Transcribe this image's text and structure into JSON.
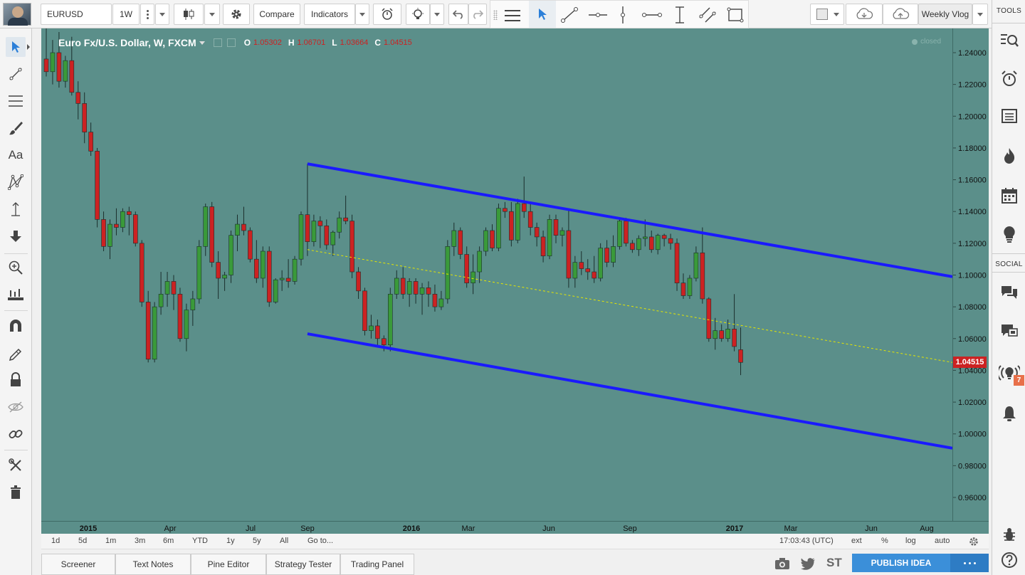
{
  "toolbar": {
    "symbol": "EURUSD",
    "interval": "1W",
    "compare_label": "Compare",
    "indicators_label": "Indicators",
    "layout_name": "Weekly Vlog"
  },
  "legend": {
    "title": "Euro Fx/U.S. Dollar, W, FXCM",
    "o_label": "O",
    "o_value": "1.05302",
    "h_label": "H",
    "h_value": "1.06701",
    "l_label": "L",
    "l_value": "1.03664",
    "c_label": "C",
    "c_value": "1.04515",
    "status": "closed"
  },
  "right_panel": {
    "tools_label": "TOOLS",
    "social_label": "SOCIAL",
    "badge_count": "7"
  },
  "colors": {
    "background": "#5b8f8a",
    "up_candle": "#3a9a3a",
    "down_candle": "#cc2222",
    "channel": "#1a1aff",
    "midline": "#e6e600",
    "last_price": "#cc2222"
  },
  "chart_data": {
    "type": "candlestick",
    "symbol": "EURUSD",
    "timeframe": "W",
    "ylim": [
      0.95,
      1.255
    ],
    "y_ticks": [
      "1.24000",
      "1.22000",
      "1.20000",
      "1.18000",
      "1.16000",
      "1.14000",
      "1.12000",
      "1.10000",
      "1.08000",
      "1.06000",
      "1.04000",
      "1.02000",
      "1.00000",
      "0.98000",
      "0.96000"
    ],
    "x_ticks": [
      "2015",
      "Apr",
      "Jul",
      "Sep",
      "2016",
      "Mar",
      "Jun",
      "Sep",
      "2017",
      "Mar",
      "Jun",
      "Aug"
    ],
    "last_price_label": "1.04515",
    "candles": [
      {
        "o": 1.236,
        "h": 1.258,
        "l": 1.225,
        "c": 1.228
      },
      {
        "o": 1.228,
        "h": 1.248,
        "l": 1.22,
        "c": 1.24
      },
      {
        "o": 1.24,
        "h": 1.253,
        "l": 1.218,
        "c": 1.222
      },
      {
        "o": 1.222,
        "h": 1.238,
        "l": 1.218,
        "c": 1.235
      },
      {
        "o": 1.235,
        "h": 1.25,
        "l": 1.213,
        "c": 1.215
      },
      {
        "o": 1.215,
        "h": 1.222,
        "l": 1.198,
        "c": 1.208
      },
      {
        "o": 1.208,
        "h": 1.215,
        "l": 1.183,
        "c": 1.19
      },
      {
        "o": 1.19,
        "h": 1.196,
        "l": 1.175,
        "c": 1.178
      },
      {
        "o": 1.178,
        "h": 1.18,
        "l": 1.13,
        "c": 1.135
      },
      {
        "o": 1.135,
        "h": 1.14,
        "l": 1.115,
        "c": 1.118
      },
      {
        "o": 1.118,
        "h": 1.135,
        "l": 1.11,
        "c": 1.132
      },
      {
        "o": 1.132,
        "h": 1.142,
        "l": 1.125,
        "c": 1.13
      },
      {
        "o": 1.13,
        "h": 1.142,
        "l": 1.127,
        "c": 1.14
      },
      {
        "o": 1.14,
        "h": 1.143,
        "l": 1.125,
        "c": 1.138
      },
      {
        "o": 1.138,
        "h": 1.14,
        "l": 1.118,
        "c": 1.12
      },
      {
        "o": 1.12,
        "h": 1.122,
        "l": 1.08,
        "c": 1.083
      },
      {
        "o": 1.083,
        "h": 1.09,
        "l": 1.045,
        "c": 1.047
      },
      {
        "o": 1.047,
        "h": 1.083,
        "l": 1.045,
        "c": 1.08
      },
      {
        "o": 1.08,
        "h": 1.102,
        "l": 1.075,
        "c": 1.088
      },
      {
        "o": 1.088,
        "h": 1.102,
        "l": 1.08,
        "c": 1.096
      },
      {
        "o": 1.096,
        "h": 1.1,
        "l": 1.078,
        "c": 1.088
      },
      {
        "o": 1.088,
        "h": 1.092,
        "l": 1.058,
        "c": 1.06
      },
      {
        "o": 1.06,
        "h": 1.082,
        "l": 1.052,
        "c": 1.078
      },
      {
        "o": 1.078,
        "h": 1.09,
        "l": 1.068,
        "c": 1.085
      },
      {
        "o": 1.085,
        "h": 1.122,
        "l": 1.082,
        "c": 1.118
      },
      {
        "o": 1.118,
        "h": 1.145,
        "l": 1.112,
        "c": 1.143
      },
      {
        "o": 1.143,
        "h": 1.146,
        "l": 1.105,
        "c": 1.108
      },
      {
        "o": 1.108,
        "h": 1.115,
        "l": 1.085,
        "c": 1.098
      },
      {
        "o": 1.098,
        "h": 1.102,
        "l": 1.09,
        "c": 1.1
      },
      {
        "o": 1.1,
        "h": 1.128,
        "l": 1.095,
        "c": 1.125
      },
      {
        "o": 1.125,
        "h": 1.138,
        "l": 1.115,
        "c": 1.132
      },
      {
        "o": 1.132,
        "h": 1.143,
        "l": 1.125,
        "c": 1.128
      },
      {
        "o": 1.128,
        "h": 1.13,
        "l": 1.108,
        "c": 1.11
      },
      {
        "o": 1.11,
        "h": 1.122,
        "l": 1.095,
        "c": 1.098
      },
      {
        "o": 1.098,
        "h": 1.118,
        "l": 1.092,
        "c": 1.115
      },
      {
        "o": 1.115,
        "h": 1.118,
        "l": 1.08,
        "c": 1.083
      },
      {
        "o": 1.083,
        "h": 1.098,
        "l": 1.082,
        "c": 1.097
      },
      {
        "o": 1.097,
        "h": 1.103,
        "l": 1.09,
        "c": 1.098
      },
      {
        "o": 1.098,
        "h": 1.11,
        "l": 1.092,
        "c": 1.096
      },
      {
        "o": 1.096,
        "h": 1.112,
        "l": 1.094,
        "c": 1.11
      },
      {
        "o": 1.11,
        "h": 1.14,
        "l": 1.106,
        "c": 1.138
      },
      {
        "o": 1.138,
        "h": 1.17,
        "l": 1.112,
        "c": 1.121
      },
      {
        "o": 1.121,
        "h": 1.138,
        "l": 1.118,
        "c": 1.134
      },
      {
        "o": 1.134,
        "h": 1.137,
        "l": 1.117,
        "c": 1.131
      },
      {
        "o": 1.131,
        "h": 1.135,
        "l": 1.116,
        "c": 1.119
      },
      {
        "o": 1.119,
        "h": 1.128,
        "l": 1.112,
        "c": 1.127
      },
      {
        "o": 1.127,
        "h": 1.14,
        "l": 1.123,
        "c": 1.136
      },
      {
        "o": 1.136,
        "h": 1.15,
        "l": 1.132,
        "c": 1.134
      },
      {
        "o": 1.134,
        "h": 1.138,
        "l": 1.098,
        "c": 1.102
      },
      {
        "o": 1.102,
        "h": 1.105,
        "l": 1.085,
        "c": 1.09
      },
      {
        "o": 1.09,
        "h": 1.092,
        "l": 1.062,
        "c": 1.065
      },
      {
        "o": 1.065,
        "h": 1.075,
        "l": 1.06,
        "c": 1.068
      },
      {
        "o": 1.068,
        "h": 1.072,
        "l": 1.055,
        "c": 1.06
      },
      {
        "o": 1.06,
        "h": 1.062,
        "l": 1.052,
        "c": 1.056
      },
      {
        "o": 1.056,
        "h": 1.092,
        "l": 1.052,
        "c": 1.088
      },
      {
        "o": 1.088,
        "h": 1.103,
        "l": 1.085,
        "c": 1.098
      },
      {
        "o": 1.098,
        "h": 1.105,
        "l": 1.085,
        "c": 1.088
      },
      {
        "o": 1.088,
        "h": 1.098,
        "l": 1.08,
        "c": 1.096
      },
      {
        "o": 1.096,
        "h": 1.098,
        "l": 1.082,
        "c": 1.088
      },
      {
        "o": 1.088,
        "h": 1.095,
        "l": 1.075,
        "c": 1.092
      },
      {
        "o": 1.092,
        "h": 1.096,
        "l": 1.08,
        "c": 1.088
      },
      {
        "o": 1.088,
        "h": 1.094,
        "l": 1.077,
        "c": 1.08
      },
      {
        "o": 1.08,
        "h": 1.09,
        "l": 1.078,
        "c": 1.085
      },
      {
        "o": 1.085,
        "h": 1.122,
        "l": 1.082,
        "c": 1.118
      },
      {
        "o": 1.118,
        "h": 1.133,
        "l": 1.112,
        "c": 1.128
      },
      {
        "o": 1.128,
        "h": 1.13,
        "l": 1.11,
        "c": 1.113
      },
      {
        "o": 1.113,
        "h": 1.118,
        "l": 1.092,
        "c": 1.095
      },
      {
        "o": 1.095,
        "h": 1.113,
        "l": 1.088,
        "c": 1.102
      },
      {
        "o": 1.102,
        "h": 1.118,
        "l": 1.095,
        "c": 1.115
      },
      {
        "o": 1.115,
        "h": 1.13,
        "l": 1.112,
        "c": 1.128
      },
      {
        "o": 1.128,
        "h": 1.132,
        "l": 1.115,
        "c": 1.117
      },
      {
        "o": 1.117,
        "h": 1.145,
        "l": 1.115,
        "c": 1.142
      },
      {
        "o": 1.142,
        "h": 1.146,
        "l": 1.136,
        "c": 1.14
      },
      {
        "o": 1.14,
        "h": 1.146,
        "l": 1.118,
        "c": 1.122
      },
      {
        "o": 1.122,
        "h": 1.148,
        "l": 1.12,
        "c": 1.145
      },
      {
        "o": 1.145,
        "h": 1.162,
        "l": 1.136,
        "c": 1.14
      },
      {
        "o": 1.14,
        "h": 1.145,
        "l": 1.125,
        "c": 1.13
      },
      {
        "o": 1.13,
        "h": 1.133,
        "l": 1.118,
        "c": 1.124
      },
      {
        "o": 1.124,
        "h": 1.128,
        "l": 1.108,
        "c": 1.112
      },
      {
        "o": 1.112,
        "h": 1.138,
        "l": 1.11,
        "c": 1.135
      },
      {
        "o": 1.135,
        "h": 1.138,
        "l": 1.12,
        "c": 1.125
      },
      {
        "o": 1.125,
        "h": 1.13,
        "l": 1.118,
        "c": 1.128
      },
      {
        "o": 1.128,
        "h": 1.142,
        "l": 1.092,
        "c": 1.098
      },
      {
        "o": 1.098,
        "h": 1.112,
        "l": 1.092,
        "c": 1.108
      },
      {
        "o": 1.108,
        "h": 1.115,
        "l": 1.1,
        "c": 1.104
      },
      {
        "o": 1.104,
        "h": 1.11,
        "l": 1.097,
        "c": 1.102
      },
      {
        "o": 1.102,
        "h": 1.112,
        "l": 1.095,
        "c": 1.098
      },
      {
        "o": 1.098,
        "h": 1.12,
        "l": 1.096,
        "c": 1.117
      },
      {
        "o": 1.117,
        "h": 1.122,
        "l": 1.105,
        "c": 1.108
      },
      {
        "o": 1.108,
        "h": 1.125,
        "l": 1.105,
        "c": 1.118
      },
      {
        "o": 1.118,
        "h": 1.136,
        "l": 1.116,
        "c": 1.134
      },
      {
        "o": 1.134,
        "h": 1.136,
        "l": 1.118,
        "c": 1.12
      },
      {
        "o": 1.12,
        "h": 1.122,
        "l": 1.114,
        "c": 1.116
      },
      {
        "o": 1.116,
        "h": 1.125,
        "l": 1.112,
        "c": 1.123
      },
      {
        "o": 1.123,
        "h": 1.135,
        "l": 1.118,
        "c": 1.124
      },
      {
        "o": 1.124,
        "h": 1.128,
        "l": 1.114,
        "c": 1.116
      },
      {
        "o": 1.116,
        "h": 1.126,
        "l": 1.113,
        "c": 1.125
      },
      {
        "o": 1.125,
        "h": 1.126,
        "l": 1.118,
        "c": 1.123
      },
      {
        "o": 1.123,
        "h": 1.126,
        "l": 1.116,
        "c": 1.12
      },
      {
        "o": 1.12,
        "h": 1.123,
        "l": 1.09,
        "c": 1.095
      },
      {
        "o": 1.095,
        "h": 1.101,
        "l": 1.085,
        "c": 1.087
      },
      {
        "o": 1.087,
        "h": 1.1,
        "l": 1.085,
        "c": 1.098
      },
      {
        "o": 1.098,
        "h": 1.118,
        "l": 1.096,
        "c": 1.114
      },
      {
        "o": 1.114,
        "h": 1.13,
        "l": 1.082,
        "c": 1.085
      },
      {
        "o": 1.085,
        "h": 1.086,
        "l": 1.058,
        "c": 1.06
      },
      {
        "o": 1.06,
        "h": 1.073,
        "l": 1.053,
        "c": 1.065
      },
      {
        "o": 1.065,
        "h": 1.069,
        "l": 1.058,
        "c": 1.06
      },
      {
        "o": 1.06,
        "h": 1.072,
        "l": 1.058,
        "c": 1.066
      },
      {
        "o": 1.066,
        "h": 1.088,
        "l": 1.052,
        "c": 1.055
      },
      {
        "o": 1.053,
        "h": 1.067,
        "l": 1.037,
        "c": 1.045
      }
    ],
    "drawings": [
      {
        "type": "channel-upper",
        "from_index": 41,
        "from_price": 1.17,
        "to_index": "right-edge",
        "to_price": 1.099
      },
      {
        "type": "channel-lower",
        "from_index": 41,
        "from_price": 1.063,
        "to_index": "right-edge",
        "to_price": 0.991
      },
      {
        "type": "channel-mid",
        "from_index": 41,
        "from_price": 1.116,
        "to_index": "right-edge",
        "to_price": 1.045
      }
    ]
  },
  "bottom_bar": {
    "ranges": [
      "1d",
      "5d",
      "1m",
      "3m",
      "6m",
      "YTD",
      "1y",
      "5y",
      "All"
    ],
    "goto_label": "Go to...",
    "clock": "17:03:43 (UTC)",
    "ext_label": "ext",
    "percent_label": "%",
    "log_label": "log",
    "auto_label": "auto"
  },
  "panel_tabs": [
    "Screener",
    "Text Notes",
    "Pine Editor",
    "Strategy Tester",
    "Trading Panel"
  ],
  "publish_label": "PUBLISH IDEA",
  "st_label": "ST"
}
